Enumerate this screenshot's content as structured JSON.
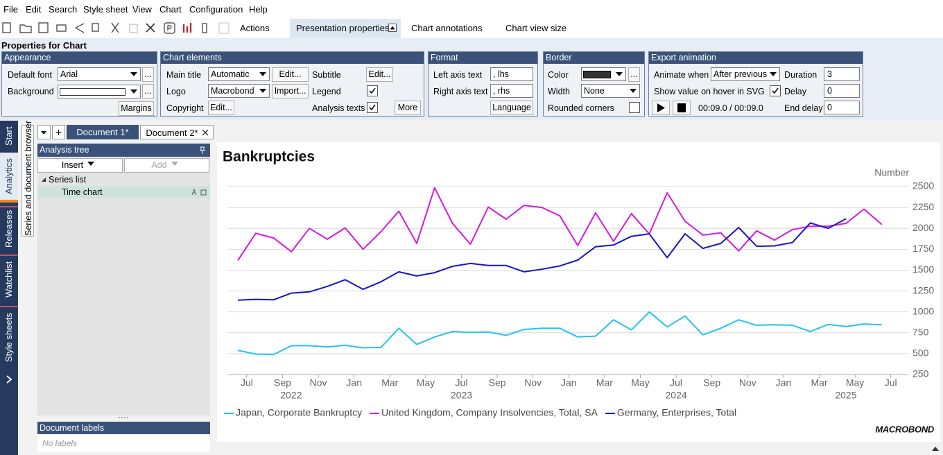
{
  "menu": [
    "File",
    "Edit",
    "Search",
    "Style sheet",
    "View",
    "Chart",
    "Configuration",
    "Help"
  ],
  "toolbar": {
    "actions": "Actions",
    "tabs": [
      "Presentation properties",
      "Chart annotations",
      "Chart view size"
    ]
  },
  "properties": {
    "title": "Properties for Chart",
    "ellipsis": "...",
    "appearance": {
      "header": "Appearance",
      "default_font_label": "Default font",
      "default_font": "Arial",
      "background_label": "Background",
      "margins": "Margins"
    },
    "chart_elements": {
      "header": "Chart elements",
      "main_title_label": "Main title",
      "main_title": "Automatic",
      "main_title_edit": "Edit...",
      "subtitle_label": "Subtitle",
      "subtitle_edit": "Edit...",
      "logo_label": "Logo",
      "logo": "Macrobond",
      "import": "Import...",
      "legend_label": "Legend",
      "copyright_label": "Copyright",
      "copyright_edit": "Edit...",
      "analysis_texts_label": "Analysis texts",
      "more": "More"
    },
    "format": {
      "header": "Format",
      "left_label": "Left axis text",
      "left": ", lhs",
      "right_label": "Right axis text",
      "right": ", rhs",
      "language": "Language"
    },
    "border": {
      "header": "Border",
      "color_label": "Color",
      "width_label": "Width",
      "width": "None",
      "rounded_label": "Rounded corners"
    },
    "export": {
      "header": "Export animation",
      "animate_label": "Animate when",
      "animate": "After previous",
      "duration_label": "Duration",
      "duration": "3",
      "hover_label": "Show value on hover in SVG",
      "delay_label": "Delay",
      "delay": "0",
      "time": "00:09.0 / 00:09.0",
      "end_delay_label": "End delay",
      "end_delay": "0"
    }
  },
  "side_tabs": [
    "Start",
    "Analytics",
    "Releases",
    "Watchlist",
    "Style sheets"
  ],
  "browser_tab": "Series and document browser",
  "documents": [
    "Document 1*",
    "Document 2*"
  ],
  "analysis_tree": {
    "header": "Analysis tree",
    "insert": "Insert",
    "add": "Add",
    "series_list": "Series list",
    "time_chart": "Time chart"
  },
  "document_labels": {
    "header": "Document labels",
    "empty": "No labels"
  },
  "chart_data": {
    "type": "line",
    "title": "Bankruptcies",
    "y_axis_label": "Number",
    "y_axis_side": "right",
    "grid": true,
    "legend": "bottom",
    "logo": "MACROBOND",
    "x": [
      "2022-06",
      "2022-07",
      "2022-08",
      "2022-09",
      "2022-10",
      "2022-11",
      "2022-12",
      "2023-01",
      "2023-02",
      "2023-03",
      "2023-04",
      "2023-05",
      "2023-06",
      "2023-07",
      "2023-08",
      "2023-09",
      "2023-10",
      "2023-11",
      "2023-12",
      "2024-01",
      "2024-02",
      "2024-03",
      "2024-04",
      "2024-05",
      "2024-06",
      "2024-07",
      "2024-08",
      "2024-09",
      "2024-10",
      "2024-11",
      "2024-12",
      "2025-01",
      "2025-02",
      "2025-03",
      "2025-04",
      "2025-05",
      "2025-06"
    ],
    "xticks": [
      {
        "value": "2022-07",
        "label": "Jul"
      },
      {
        "value": "2022-09",
        "label": "Sep"
      },
      {
        "value": "2022-11",
        "label": "Nov"
      },
      {
        "value": "2023-01",
        "label": "Jan"
      },
      {
        "value": "2023-03",
        "label": "Mar"
      },
      {
        "value": "2023-05",
        "label": "May"
      },
      {
        "value": "2023-07",
        "label": "Jul"
      },
      {
        "value": "2023-09",
        "label": "Sep"
      },
      {
        "value": "2023-11",
        "label": "Nov"
      },
      {
        "value": "2024-01",
        "label": "Jan"
      },
      {
        "value": "2024-03",
        "label": "Mar"
      },
      {
        "value": "2024-05",
        "label": "May"
      },
      {
        "value": "2024-07",
        "label": "Jul"
      },
      {
        "value": "2024-09",
        "label": "Sep"
      },
      {
        "value": "2024-11",
        "label": "Nov"
      },
      {
        "value": "2025-01",
        "label": "Jan"
      },
      {
        "value": "2025-03",
        "label": "Mar"
      },
      {
        "value": "2025-05",
        "label": "May"
      },
      {
        "value": "2025-07",
        "label": "Jul"
      }
    ],
    "year_labels": [
      2022,
      2023,
      2024,
      2025
    ],
    "ylim": [
      250,
      2500
    ],
    "yticks": [
      250,
      500,
      750,
      1000,
      1250,
      1500,
      1750,
      2000,
      2250,
      2500
    ],
    "series": [
      {
        "name": "Japan, Corporate Bankruptcy",
        "color": "#22c3f0",
        "values": [
          540,
          495,
          490,
          595,
          595,
          580,
          600,
          570,
          575,
          805,
          610,
          700,
          765,
          755,
          760,
          720,
          790,
          805,
          805,
          700,
          710,
          905,
          785,
          1000,
          820,
          950,
          725,
          805,
          905,
          840,
          845,
          840,
          765,
          850,
          825,
          855,
          845
        ]
      },
      {
        "name": "United Kingdom, Company Insolvencies, Total, SA",
        "color": "#d817dc",
        "values": [
          1615,
          1940,
          1885,
          1720,
          2000,
          1870,
          2005,
          1750,
          1960,
          2205,
          1820,
          2485,
          2060,
          1810,
          2255,
          2110,
          2275,
          2250,
          2150,
          1795,
          2185,
          1845,
          2175,
          1935,
          2425,
          2085,
          1920,
          1945,
          1730,
          1970,
          1860,
          1985,
          2025,
          2025,
          2060,
          2230,
          2045
        ]
      },
      {
        "name": "Germany, Enterprises, Total",
        "color": "#1414cc",
        "values": [
          1140,
          1150,
          1145,
          1225,
          1240,
          1305,
          1385,
          1270,
          1360,
          1480,
          1430,
          1470,
          1545,
          1580,
          1555,
          1555,
          1480,
          1510,
          1550,
          1620,
          1780,
          1800,
          1905,
          1935,
          1650,
          1935,
          1760,
          1820,
          2010,
          1785,
          1790,
          1830,
          2065,
          2000,
          2115,
          null,
          null
        ]
      }
    ]
  }
}
